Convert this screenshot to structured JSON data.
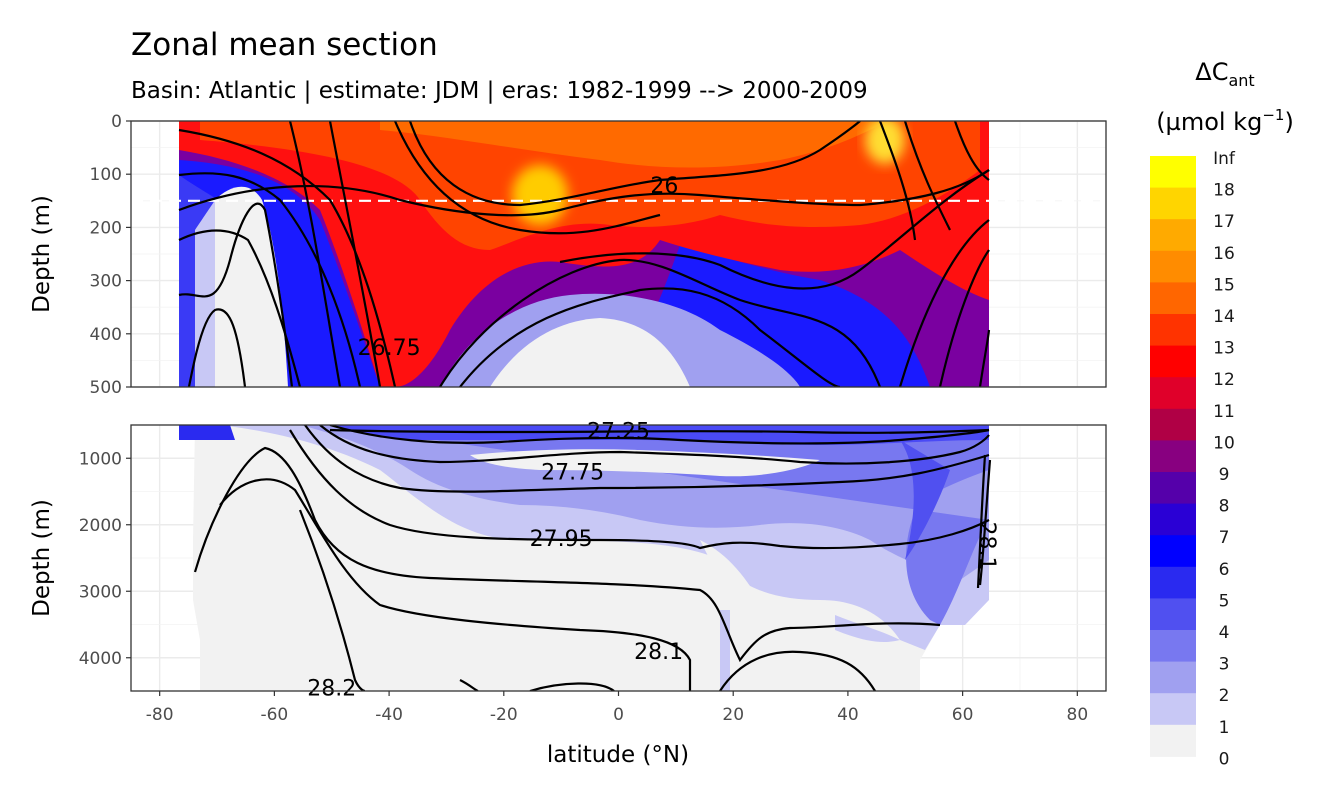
{
  "chart_data": {
    "type": "heatmap",
    "title": "Zonal mean section",
    "subtitle": "Basin: Atlantic | estimate: JDM  | eras: 1982-1999 --> 2000-2009",
    "xlabel": "latitude (°N)",
    "ylabel": "Depth (m)",
    "xlim": [
      -85,
      85
    ],
    "x_ticks": [
      "-80",
      "-60",
      "-40",
      "-20",
      "0",
      "20",
      "40",
      "60",
      "80"
    ],
    "grid": true,
    "panels": [
      {
        "name": "upper",
        "ylim": [
          500,
          0
        ],
        "y_ticks": [
          "0",
          "100",
          "200",
          "300",
          "400",
          "500"
        ],
        "reference_line_depth": 150
      },
      {
        "name": "lower",
        "ylim": [
          4500,
          500
        ],
        "y_ticks": [
          "1000",
          "2000",
          "3000",
          "4000"
        ]
      }
    ],
    "legend": {
      "title_main": "ΔC",
      "title_sub": "ant",
      "unit_prefix": "(µmol kg",
      "unit_exp": "−1",
      "unit_suffix": ")",
      "position": "right",
      "labels": [
        "Inf",
        "18",
        "17",
        "16",
        "15",
        "14",
        "13",
        "12",
        "11",
        "10",
        "9",
        "8",
        "7",
        "6",
        "5",
        "4",
        "3",
        "2",
        "1",
        "0"
      ],
      "colors": [
        "#ffff00",
        "#ffd500",
        "#ffaa00",
        "#ff8c00",
        "#ff6600",
        "#ff3300",
        "#ff0000",
        "#e0002a",
        "#b00045",
        "#880080",
        "#5500aa",
        "#2a00d5",
        "#0000ff",
        "#2a2af0",
        "#5050f0",
        "#7878f0",
        "#a0a0f0",
        "#c8c8f5",
        "#f2f2f2"
      ]
    },
    "contour_labels": [
      {
        "panel": "upper",
        "text": "26",
        "lat": 8,
        "depth": 120
      },
      {
        "panel": "upper",
        "text": "26.75",
        "lat": -40,
        "depth": 425
      },
      {
        "panel": "lower",
        "text": "27.25",
        "lat": 0,
        "depth": 580
      },
      {
        "panel": "lower",
        "text": "27.75",
        "lat": -8,
        "depth": 1200
      },
      {
        "panel": "lower",
        "text": "27.95",
        "lat": -10,
        "depth": 2200
      },
      {
        "panel": "lower",
        "text": "28.1",
        "lat": 7,
        "depth": 3900
      },
      {
        "panel": "lower",
        "text": "28.2",
        "lat": -50,
        "depth": 4450
      },
      {
        "panel": "lower",
        "text": "28.1",
        "lat": 63,
        "depth": 2200
      }
    ],
    "field_description_hotspots": [
      {
        "lat": -12,
        "depth": 130,
        "value": 17
      },
      {
        "lat": 45,
        "depth": 40,
        "value": 17
      },
      {
        "lat": -62,
        "depth": 400,
        "value": 0
      },
      {
        "lat": -5,
        "depth": 480,
        "value": 1
      }
    ]
  }
}
